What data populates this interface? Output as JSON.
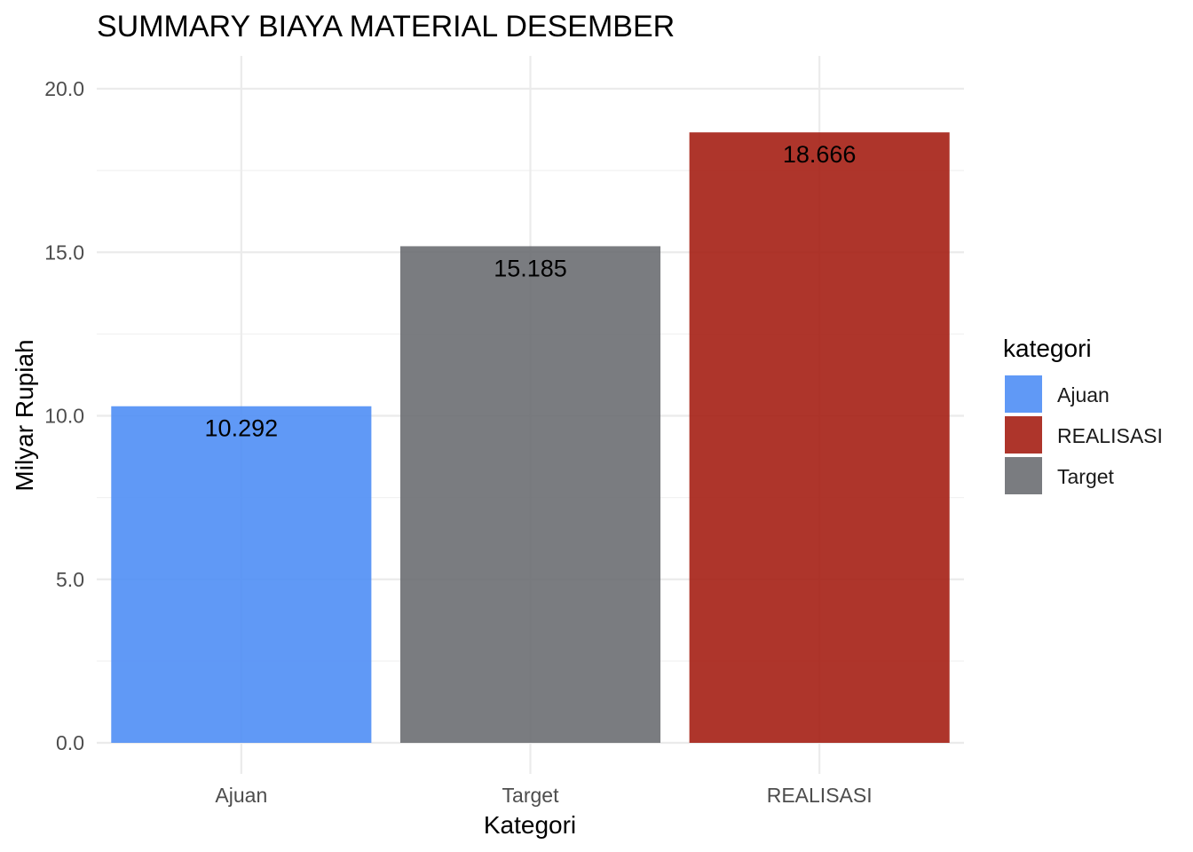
{
  "chart_data": {
    "type": "bar",
    "title": "SUMMARY BIAYA MATERIAL DESEMBER",
    "xlabel": "Kategori",
    "ylabel": "Milyar Rupiah",
    "categories": [
      "Ajuan",
      "Target",
      "REALISASI"
    ],
    "values": [
      10.292,
      15.185,
      18.666
    ],
    "value_labels": [
      "10.292",
      "15.185",
      "18.666"
    ],
    "colors": [
      "#4f8ef5",
      "#6c6e72",
      "#a51f14"
    ],
    "ylim": [
      0,
      20.9
    ],
    "yticks": [
      0,
      5,
      10,
      15,
      20
    ],
    "ytick_labels": [
      "0.0",
      "5.0",
      "10.0",
      "15.0",
      "20.0"
    ],
    "grid": true,
    "legend": {
      "title": "kategori",
      "placement": "right",
      "entries": [
        {
          "label": "Ajuan",
          "color": "#4f8ef5"
        },
        {
          "label": "REALISASI",
          "color": "#a51f14"
        },
        {
          "label": "Target",
          "color": "#6c6e72"
        }
      ]
    }
  }
}
